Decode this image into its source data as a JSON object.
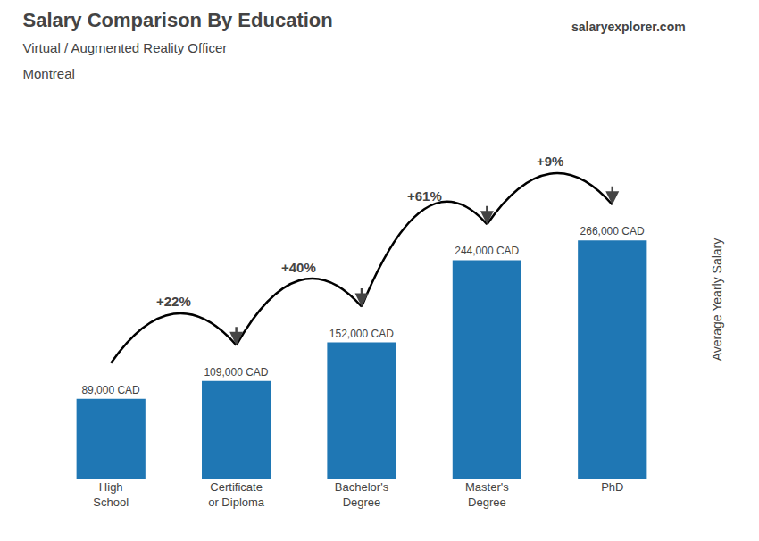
{
  "chart_data": {
    "type": "bar",
    "title": "Salary Comparison By Education",
    "subtitle": [
      "Virtual / Augmented Reality Officer",
      "Montreal"
    ],
    "ylabel": "Average Yearly Salary",
    "categories": [
      "High\nSchool",
      "Certificate\nor Diploma",
      "Bachelor's\nDegree",
      "Master's\nDegree",
      "PhD"
    ],
    "values": [
      89000,
      109000,
      152000,
      244000,
      266000
    ],
    "value_labels": [
      "89,000 CAD",
      "109,000 CAD",
      "152,000 CAD",
      "244,000 CAD",
      "266,000 CAD"
    ],
    "data_labels": true,
    "ylim": [
      0,
      400000
    ],
    "tick_labels": "x",
    "grid": false,
    "annotations": [
      {
        "text": "+22%",
        "from": "High\nSchool",
        "to": "Certificate\nor Diploma"
      },
      {
        "text": "+40%",
        "from": "Certificate\nor Diploma",
        "to": "Bachelor's\nDegree"
      },
      {
        "text": "+61%",
        "from": "Bachelor's\nDegree",
        "to": "Master's\nDegree"
      },
      {
        "text": "+9%",
        "from": "Master's\nDegree",
        "to": "PhD"
      },
      {
        "text": "salaryexplorer.com"
      }
    ]
  }
}
